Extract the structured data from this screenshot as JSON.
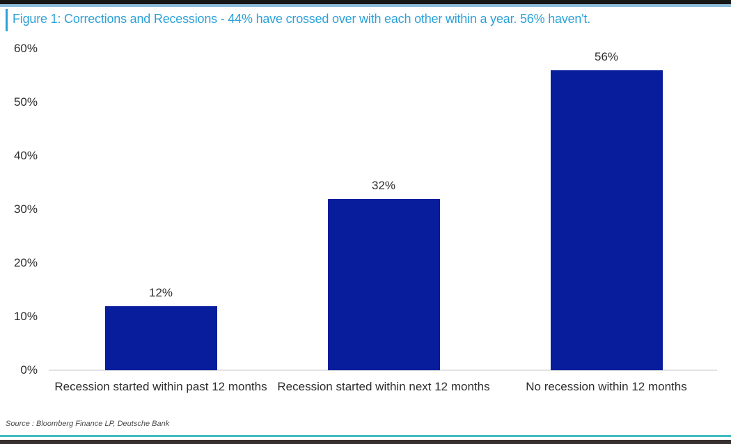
{
  "header": {
    "title": "Figure 1: Corrections and Recessions - 44% have crossed over with each other within a year. 56% haven't."
  },
  "footer": {
    "source": "Source : Bloomberg Finance LP, Deutsche Bank"
  },
  "colors": {
    "title_blue": "#2BA1DA",
    "top_rule_blue": "#8FBEDC",
    "bar_blue": "#071D9C",
    "bottom_rule_teal": "#43BDC1",
    "top_strip_black": "#161616",
    "bottom_strip_dark": "#363031",
    "axis_text": "#2d2d2d",
    "baseline_gray": "#e2e2e2"
  },
  "chart_data": {
    "type": "bar",
    "title": "Figure 1: Corrections and Recessions - 44% have crossed over with each other within a year. 56% haven't.",
    "categories": [
      "Recession started within past 12 months",
      "Recession started within next 12 months",
      "No recession within 12 months"
    ],
    "values": [
      12,
      32,
      56
    ],
    "value_labels": [
      "12%",
      "32%",
      "56%"
    ],
    "y_ticks": [
      {
        "value": 0,
        "label": "0%"
      },
      {
        "value": 10,
        "label": "10%"
      },
      {
        "value": 20,
        "label": "20%"
      },
      {
        "value": 30,
        "label": "30%"
      },
      {
        "value": 40,
        "label": "40%"
      },
      {
        "value": 50,
        "label": "50%"
      },
      {
        "value": 60,
        "label": "60%"
      }
    ],
    "xlabel": "",
    "ylabel": "",
    "ylim": [
      0,
      60
    ],
    "grid": false,
    "legend": "none",
    "bar_color": "#071D9C",
    "source": "Source : Bloomberg Finance LP, Deutsche Bank"
  }
}
